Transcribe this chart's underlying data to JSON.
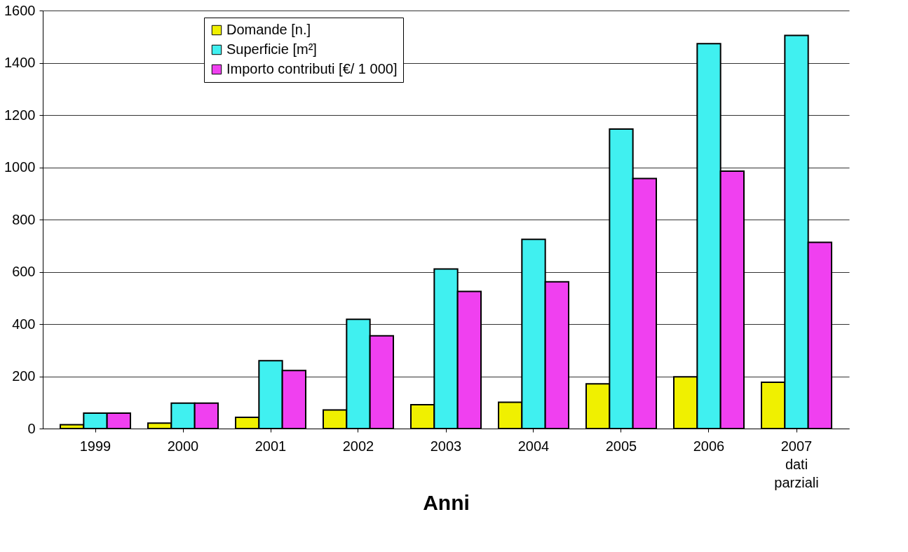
{
  "chart_data": {
    "type": "bar",
    "xlabel": "Anni",
    "categories": [
      "1999",
      "2000",
      "2001",
      "2002",
      "2003",
      "2004",
      "2005",
      "2006",
      "2007\ndati\nparziali"
    ],
    "series": [
      {
        "name": "Domande [n.]",
        "color": "#f0f000",
        "values": [
          15,
          21,
          43,
          71,
          91,
          101,
          171,
          198,
          177
        ]
      },
      {
        "name": "Superficie [m²]",
        "color": "#40f0f0",
        "values": [
          59,
          97,
          260,
          418,
          611,
          724,
          1146,
          1473,
          1505
        ]
      },
      {
        "name": "Importo contributi [€/ 1 000]",
        "color": "#f040f0",
        "values": [
          59,
          97,
          222,
          355,
          525,
          562,
          957,
          985,
          713
        ]
      }
    ],
    "ylim": [
      0,
      1600
    ],
    "yticks": [
      0,
      200,
      400,
      600,
      800,
      1000,
      1200,
      1400,
      1600
    ],
    "grid": "y",
    "legend": "top left"
  }
}
